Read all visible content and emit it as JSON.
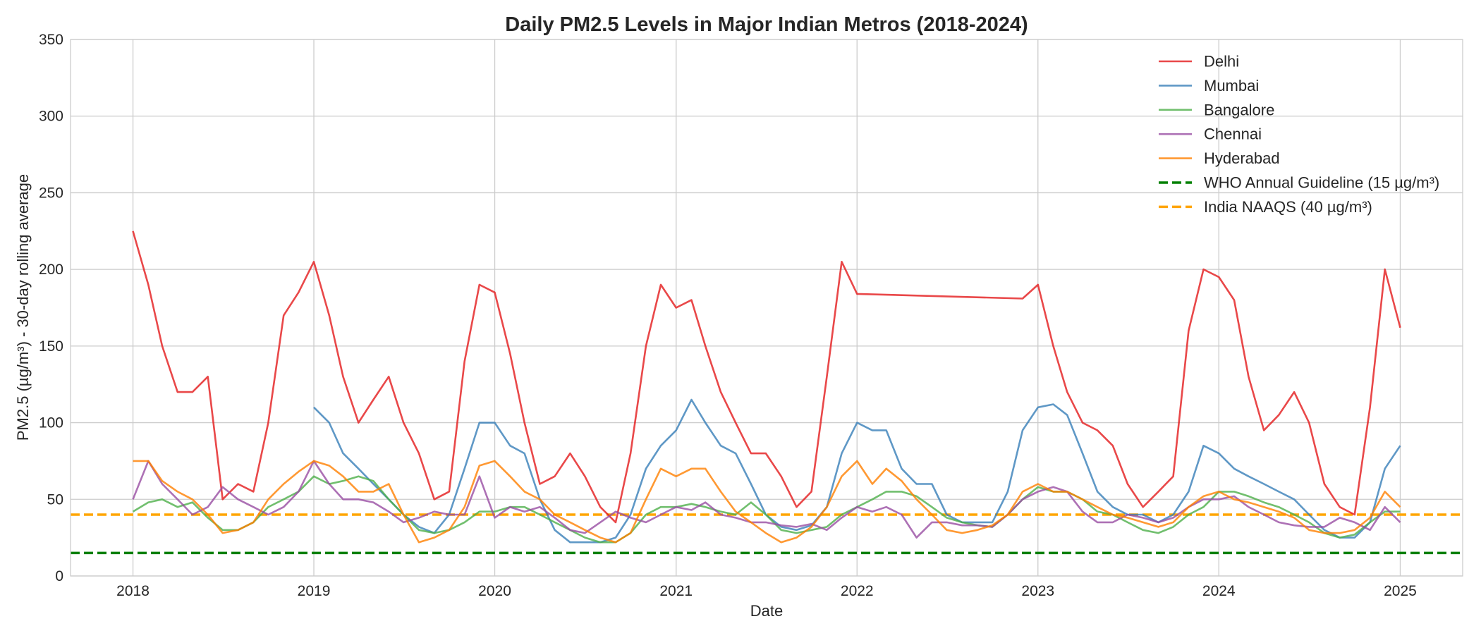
{
  "chart_data": {
    "type": "line",
    "title": "Daily PM2.5 Levels in Major Indian Metros (2018-2024)",
    "xlabel": "Date",
    "ylabel": "PM2.5 (µg/m³) - 30-day rolling average",
    "xlim": [
      "2017-08-28",
      "2025-05-07"
    ],
    "ylim": [
      0,
      350
    ],
    "yticks": [
      0,
      50,
      100,
      150,
      200,
      250,
      300,
      350
    ],
    "xticks": [
      "2018",
      "2019",
      "2020",
      "2021",
      "2022",
      "2023",
      "2024",
      "2025"
    ],
    "grid": true,
    "legend_placement": "top-right",
    "x": [
      "2018-01-01",
      "2018-02-01",
      "2018-03-01",
      "2018-04-01",
      "2018-05-01",
      "2018-06-01",
      "2018-07-01",
      "2018-08-01",
      "2018-09-01",
      "2018-10-01",
      "2018-11-01",
      "2018-12-01",
      "2019-01-01",
      "2019-02-01",
      "2019-03-01",
      "2019-04-01",
      "2019-05-01",
      "2019-06-01",
      "2019-07-01",
      "2019-08-01",
      "2019-09-01",
      "2019-10-01",
      "2019-11-01",
      "2019-12-01",
      "2020-01-01",
      "2020-02-01",
      "2020-03-01",
      "2020-04-01",
      "2020-05-01",
      "2020-06-01",
      "2020-07-01",
      "2020-08-01",
      "2020-09-01",
      "2020-10-01",
      "2020-11-01",
      "2020-12-01",
      "2021-01-01",
      "2021-02-01",
      "2021-03-01",
      "2021-04-01",
      "2021-05-01",
      "2021-06-01",
      "2021-07-01",
      "2021-08-01",
      "2021-09-01",
      "2021-10-01",
      "2021-11-01",
      "2021-12-01",
      "2022-01-01",
      "2022-02-01",
      "2022-03-01",
      "2022-04-01",
      "2022-05-01",
      "2022-06-01",
      "2022-07-01",
      "2022-08-01",
      "2022-09-01",
      "2022-10-01",
      "2022-11-01",
      "2022-12-01",
      "2023-01-01",
      "2023-02-01",
      "2023-03-01",
      "2023-04-01",
      "2023-05-01",
      "2023-06-01",
      "2023-07-01",
      "2023-08-01",
      "2023-09-01",
      "2023-10-01",
      "2023-11-01",
      "2023-12-01",
      "2024-01-01",
      "2024-02-01",
      "2024-03-01",
      "2024-04-01",
      "2024-05-01",
      "2024-06-01",
      "2024-07-01",
      "2024-08-01",
      "2024-09-01",
      "2024-10-01",
      "2024-11-01",
      "2024-12-01",
      "2025-01-01"
    ],
    "series": [
      {
        "name": "Delhi",
        "color": "#e41a1c",
        "values": [
          225,
          190,
          150,
          120,
          120,
          130,
          50,
          60,
          55,
          100,
          170,
          185,
          205,
          170,
          130,
          100,
          115,
          130,
          100,
          80,
          50,
          55,
          140,
          190,
          185,
          145,
          100,
          60,
          65,
          80,
          65,
          45,
          35,
          80,
          150,
          190,
          175,
          180,
          150,
          120,
          100,
          80,
          80,
          65,
          45,
          55,
          130,
          205,
          184,
          null,
          null,
          null,
          null,
          null,
          null,
          null,
          null,
          null,
          null,
          181,
          190,
          150,
          120,
          100,
          95,
          85,
          60,
          45,
          55,
          65,
          160,
          200,
          195,
          180,
          130,
          95,
          105,
          120,
          100,
          60,
          45,
          40,
          110,
          200,
          162
        ]
      },
      {
        "name": "Mumbai",
        "color": "#377eb8",
        "values": [
          null,
          null,
          null,
          null,
          null,
          null,
          null,
          null,
          null,
          null,
          null,
          null,
          110,
          100,
          80,
          70,
          60,
          50,
          40,
          32,
          28,
          40,
          70,
          100,
          100,
          85,
          80,
          50,
          30,
          22,
          22,
          22,
          25,
          40,
          70,
          85,
          95,
          115,
          100,
          85,
          80,
          60,
          40,
          32,
          30,
          33,
          45,
          80,
          100,
          95,
          95,
          70,
          60,
          60,
          40,
          35,
          35,
          35,
          55,
          95,
          110,
          112,
          105,
          80,
          55,
          45,
          40,
          40,
          35,
          40,
          55,
          85,
          80,
          70,
          65,
          60,
          55,
          50,
          40,
          30,
          25,
          25,
          35,
          70,
          85
        ]
      },
      {
        "name": "Bangalore",
        "color": "#4daf4a",
        "values": [
          42,
          48,
          50,
          45,
          48,
          38,
          30,
          30,
          35,
          45,
          50,
          55,
          65,
          60,
          62,
          65,
          62,
          50,
          40,
          30,
          28,
          30,
          35,
          42,
          42,
          45,
          45,
          40,
          35,
          30,
          25,
          22,
          22,
          28,
          40,
          45,
          45,
          47,
          45,
          42,
          40,
          48,
          40,
          30,
          28,
          30,
          32,
          40,
          45,
          50,
          55,
          55,
          52,
          45,
          38,
          35,
          33,
          32,
          40,
          50,
          58,
          55,
          55,
          50,
          42,
          40,
          35,
          30,
          28,
          32,
          40,
          45,
          55,
          55,
          52,
          48,
          45,
          40,
          35,
          28,
          25,
          27,
          35,
          42,
          42
        ]
      },
      {
        "name": "Chennai",
        "color": "#984ea3",
        "values": [
          50,
          75,
          60,
          50,
          40,
          45,
          58,
          50,
          45,
          40,
          45,
          55,
          75,
          60,
          50,
          50,
          48,
          42,
          35,
          38,
          42,
          40,
          40,
          65,
          38,
          45,
          42,
          45,
          38,
          30,
          28,
          35,
          42,
          38,
          35,
          40,
          45,
          43,
          48,
          40,
          38,
          35,
          35,
          33,
          32,
          34,
          30,
          38,
          45,
          42,
          45,
          40,
          25,
          35,
          35,
          33,
          33,
          32,
          40,
          50,
          55,
          58,
          55,
          42,
          35,
          35,
          40,
          38,
          35,
          38,
          45,
          50,
          50,
          52,
          45,
          40,
          35,
          33,
          32,
          32,
          38,
          35,
          30,
          45,
          35
        ]
      },
      {
        "name": "Hyderabad",
        "color": "#ff7f00",
        "values": [
          75,
          75,
          62,
          55,
          50,
          40,
          28,
          30,
          35,
          50,
          60,
          68,
          75,
          72,
          65,
          55,
          55,
          60,
          40,
          22,
          25,
          30,
          45,
          72,
          75,
          65,
          55,
          50,
          40,
          35,
          30,
          25,
          22,
          28,
          50,
          70,
          65,
          70,
          70,
          55,
          42,
          35,
          28,
          22,
          25,
          32,
          45,
          65,
          75,
          60,
          70,
          62,
          50,
          40,
          30,
          28,
          30,
          33,
          40,
          55,
          60,
          55,
          55,
          50,
          45,
          40,
          38,
          35,
          32,
          35,
          45,
          52,
          55,
          50,
          48,
          45,
          42,
          38,
          30,
          28,
          28,
          30,
          38,
          55,
          45
        ]
      }
    ],
    "reference_lines": [
      {
        "name": "WHO Annual Guideline (15 µg/m³)",
        "value": 15,
        "color": "#008000",
        "style": "dashed"
      },
      {
        "name": "India NAAQS (40 µg/m³)",
        "value": 40,
        "color": "#ffa500",
        "style": "dashed"
      }
    ]
  }
}
